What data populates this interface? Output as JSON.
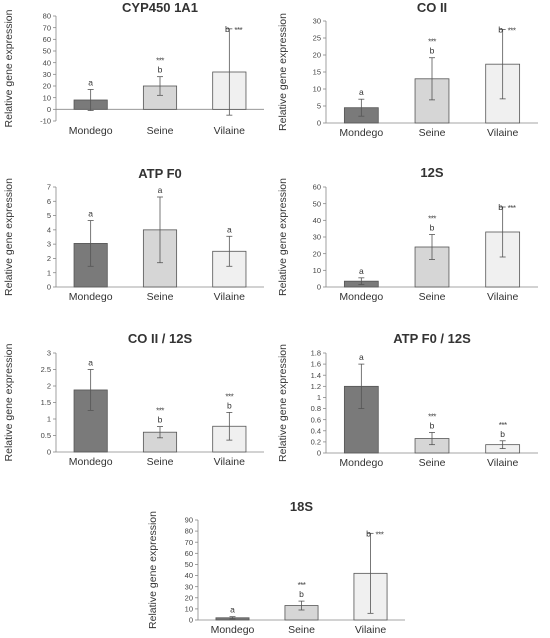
{
  "chart_data": [
    {
      "type": "bar",
      "title": "CYP450 1A1",
      "ylabel": "Relative gene expression",
      "categories": [
        "Mondego",
        "Seine",
        "Vilaine"
      ],
      "values": [
        8,
        20,
        32
      ],
      "error": [
        9,
        8,
        37
      ],
      "letters": [
        "a",
        "b",
        "b"
      ],
      "stars": [
        "",
        "***",
        "***"
      ],
      "ylim": [
        -10,
        80
      ],
      "yticks": [
        "-10",
        "0",
        "10",
        "20",
        "30",
        "40",
        "50",
        "60",
        "70",
        "80"
      ],
      "colors": [
        "#7a7a7a",
        "#d6d6d6",
        "#f0f0f0"
      ]
    },
    {
      "type": "bar",
      "title": "CO II",
      "ylabel": "Relative gene expression",
      "categories": [
        "Mondego",
        "Seine",
        "Vilaine"
      ],
      "values": [
        4.5,
        13,
        17.3
      ],
      "error": [
        2.5,
        6.2,
        10.2
      ],
      "letters": [
        "a",
        "b",
        "b"
      ],
      "stars": [
        "",
        "***",
        "***"
      ],
      "ylim": [
        0,
        30
      ],
      "yticks": [
        "0",
        "5",
        "10",
        "15",
        "20",
        "25",
        "30"
      ],
      "colors": [
        "#7a7a7a",
        "#d6d6d6",
        "#f0f0f0"
      ]
    },
    {
      "type": "bar",
      "title": "ATP F0",
      "ylabel": "Relative gene expression",
      "categories": [
        "Mondego",
        "Seine",
        "Vilaine"
      ],
      "values": [
        3.05,
        4,
        2.5
      ],
      "error": [
        1.6,
        2.3,
        1.05
      ],
      "letters": [
        "a",
        "a",
        "a"
      ],
      "stars": [
        "",
        "",
        ""
      ],
      "ylim": [
        0,
        7
      ],
      "yticks": [
        "0",
        "1",
        "2",
        "3",
        "4",
        "5",
        "6",
        "7"
      ],
      "colors": [
        "#7a7a7a",
        "#d6d6d6",
        "#f0f0f0"
      ]
    },
    {
      "type": "bar",
      "title": "12S",
      "ylabel": "Relative gene expression",
      "categories": [
        "Mondego",
        "Seine",
        "Vilaine"
      ],
      "values": [
        3.5,
        24,
        33
      ],
      "error": [
        2,
        7.5,
        15
      ],
      "letters": [
        "a",
        "b",
        "b"
      ],
      "stars": [
        "",
        "***",
        "***"
      ],
      "ylim": [
        0,
        60
      ],
      "yticks": [
        "0",
        "10",
        "20",
        "30",
        "40",
        "50",
        "60"
      ],
      "colors": [
        "#7a7a7a",
        "#d6d6d6",
        "#f0f0f0"
      ]
    },
    {
      "type": "bar",
      "title": "CO II / 12S",
      "ylabel": "Relative gene expression",
      "categories": [
        "Mondego",
        "Seine",
        "Vilaine"
      ],
      "values": [
        1.88,
        0.6,
        0.78
      ],
      "error": [
        0.62,
        0.17,
        0.42
      ],
      "letters": [
        "a",
        "b",
        "b"
      ],
      "stars": [
        "",
        "***",
        "***"
      ],
      "ylim": [
        0,
        3
      ],
      "yticks": [
        "0",
        "0.5",
        "1",
        "1.5",
        "2",
        "2.5",
        "3"
      ],
      "colors": [
        "#7a7a7a",
        "#d6d6d6",
        "#f0f0f0"
      ]
    },
    {
      "type": "bar",
      "title": "ATP F0 / 12S",
      "ylabel": "Relative gene expression",
      "categories": [
        "Mondego",
        "Seine",
        "Vilaine"
      ],
      "values": [
        1.2,
        0.26,
        0.15
      ],
      "error": [
        0.4,
        0.11,
        0.07
      ],
      "letters": [
        "a",
        "b",
        "b"
      ],
      "stars": [
        "",
        "***",
        "***"
      ],
      "ylim": [
        0,
        1.8
      ],
      "yticks": [
        "0",
        "0.2",
        "0.4",
        "0.6",
        "0.8",
        "1",
        "1.2",
        "1.4",
        "1.6",
        "1.8"
      ],
      "colors": [
        "#7a7a7a",
        "#d6d6d6",
        "#f0f0f0"
      ]
    },
    {
      "type": "bar",
      "title": "18S",
      "ylabel": "Relative gene expression",
      "categories": [
        "Mondego",
        "Seine",
        "Vilaine"
      ],
      "values": [
        2,
        13,
        42
      ],
      "error": [
        1,
        4,
        36
      ],
      "letters": [
        "a",
        "b",
        "b"
      ],
      "stars": [
        "",
        "***",
        "***"
      ],
      "ylim": [
        0,
        90
      ],
      "yticks": [
        "0",
        "10",
        "20",
        "30",
        "40",
        "50",
        "60",
        "70",
        "80",
        "90"
      ],
      "colors": [
        "#7a7a7a",
        "#d6d6d6",
        "#f0f0f0"
      ]
    }
  ]
}
